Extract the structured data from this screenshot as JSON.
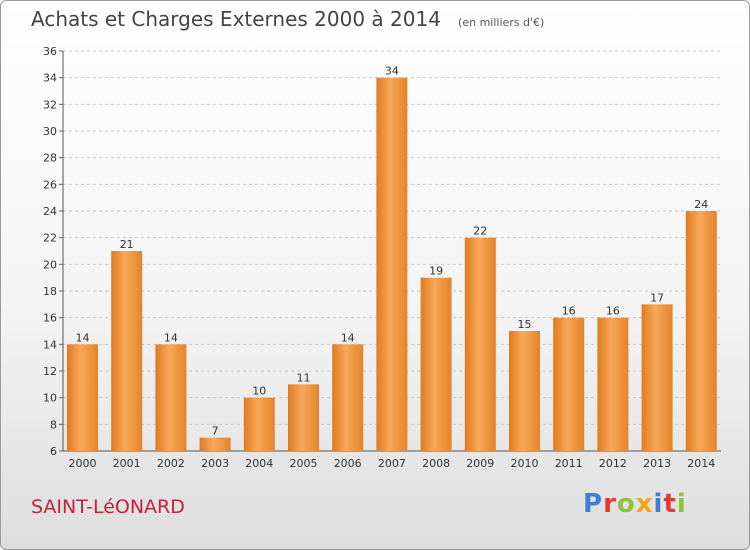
{
  "title": "Achats et Charges Externes 2000 à 2014",
  "subtitle": "(en milliers d'€)",
  "commune": "SAINT-LéONARD",
  "logo": {
    "letters": [
      "P",
      "r",
      "o",
      "x",
      "i",
      "t",
      "i"
    ],
    "colors": [
      "#3c7fd4",
      "#e23b2e",
      "#8fc33a",
      "#f3a314",
      "#3c7fd4",
      "#e23b2e",
      "#8fc33a"
    ]
  },
  "chart_data": {
    "type": "bar",
    "categories": [
      "2000",
      "2001",
      "2002",
      "2003",
      "2004",
      "2005",
      "2006",
      "2007",
      "2008",
      "2009",
      "2010",
      "2011",
      "2012",
      "2013",
      "2014"
    ],
    "values": [
      14,
      21,
      14,
      7,
      10,
      11,
      14,
      34,
      19,
      22,
      15,
      16,
      16,
      17,
      24
    ],
    "ylim": [
      6,
      36
    ],
    "yticks": [
      6,
      8,
      10,
      12,
      14,
      16,
      18,
      20,
      22,
      24,
      26,
      28,
      30,
      32,
      34,
      36
    ],
    "grid": "dashed horizontal",
    "bar_color": "#f0923a"
  }
}
